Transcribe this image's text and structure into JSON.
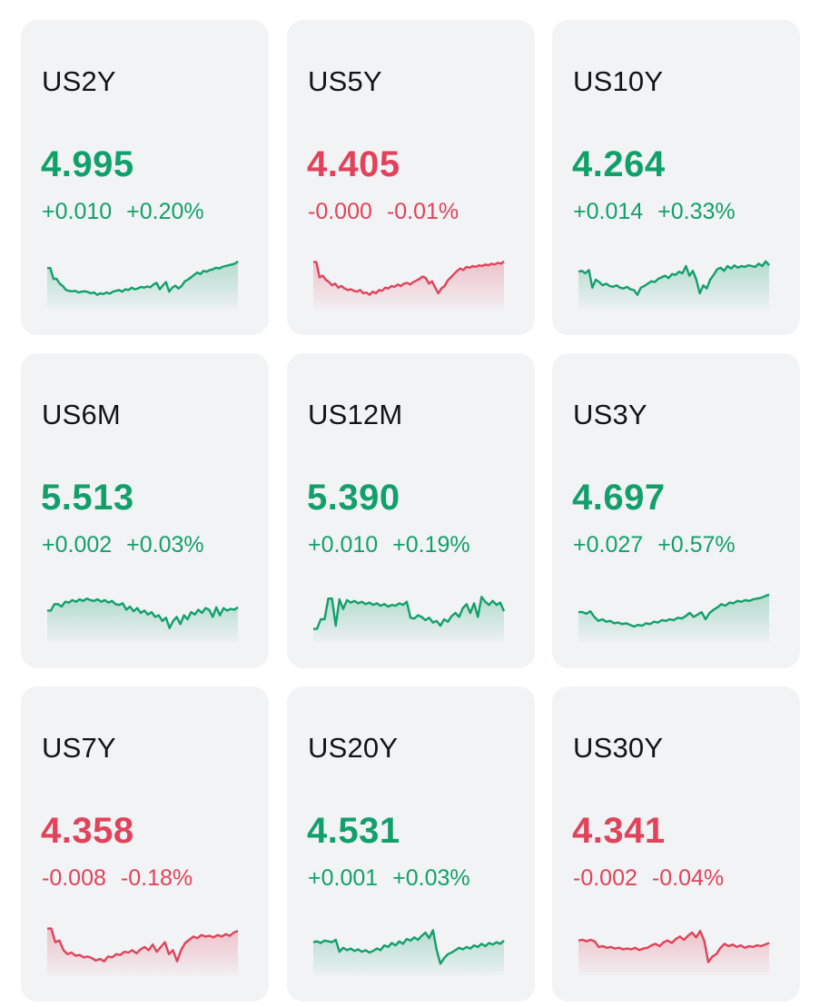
{
  "colors": {
    "up": "#12a06a",
    "down": "#e0435a",
    "card_bg": "#f2f3f5",
    "text": "#141414"
  },
  "cards": [
    {
      "symbol": "US2Y",
      "price": "4.995",
      "change": "+0.010",
      "change_pct": "+0.20%",
      "trend": "up",
      "spark": [
        0.79,
        0.79,
        0.52,
        0.52,
        0.4,
        0.34,
        0.24,
        0.22,
        0.21,
        0.22,
        0.18,
        0.2,
        0.21,
        0.19,
        0.16,
        0.18,
        0.12,
        0.16,
        0.14,
        0.18,
        0.15,
        0.2,
        0.22,
        0.24,
        0.2,
        0.26,
        0.24,
        0.3,
        0.26,
        0.28,
        0.32,
        0.3,
        0.33,
        0.31,
        0.38,
        0.42,
        0.26,
        0.36,
        0.44,
        0.2,
        0.3,
        0.35,
        0.28,
        0.34,
        0.46,
        0.5,
        0.56,
        0.62,
        0.68,
        0.64,
        0.72,
        0.7,
        0.74,
        0.76,
        0.8,
        0.78,
        0.82,
        0.84,
        0.86,
        0.88,
        0.9,
        0.96
      ]
    },
    {
      "symbol": "US5Y",
      "price": "4.405",
      "change": "-0.000",
      "change_pct": "-0.01%",
      "trend": "down",
      "spark": [
        0.94,
        0.94,
        0.56,
        0.6,
        0.5,
        0.44,
        0.36,
        0.4,
        0.3,
        0.34,
        0.28,
        0.24,
        0.26,
        0.22,
        0.2,
        0.24,
        0.16,
        0.18,
        0.12,
        0.2,
        0.16,
        0.24,
        0.22,
        0.3,
        0.28,
        0.34,
        0.32,
        0.38,
        0.34,
        0.4,
        0.42,
        0.38,
        0.44,
        0.48,
        0.52,
        0.58,
        0.54,
        0.4,
        0.46,
        0.3,
        0.16,
        0.28,
        0.34,
        0.48,
        0.56,
        0.64,
        0.72,
        0.78,
        0.74,
        0.82,
        0.8,
        0.84,
        0.82,
        0.86,
        0.84,
        0.88,
        0.86,
        0.9,
        0.88,
        0.92,
        0.9,
        0.96
      ]
    },
    {
      "symbol": "US10Y",
      "price": "4.264",
      "change": "+0.014",
      "change_pct": "+0.33%",
      "trend": "up",
      "spark": [
        0.7,
        0.72,
        0.66,
        0.74,
        0.3,
        0.5,
        0.44,
        0.36,
        0.4,
        0.34,
        0.32,
        0.36,
        0.3,
        0.28,
        0.32,
        0.26,
        0.24,
        0.12,
        0.3,
        0.34,
        0.4,
        0.46,
        0.44,
        0.52,
        0.56,
        0.6,
        0.54,
        0.64,
        0.62,
        0.7,
        0.66,
        0.84,
        0.6,
        0.72,
        0.5,
        0.16,
        0.36,
        0.28,
        0.5,
        0.62,
        0.76,
        0.8,
        0.72,
        0.84,
        0.78,
        0.86,
        0.8,
        0.84,
        0.82,
        0.86,
        0.84,
        0.82,
        0.9,
        0.84,
        0.96,
        0.86
      ]
    },
    {
      "symbol": "US6M",
      "price": "5.513",
      "change": "+0.002",
      "change_pct": "+0.03%",
      "trend": "up",
      "spark": [
        0.56,
        0.56,
        0.72,
        0.72,
        0.66,
        0.78,
        0.76,
        0.82,
        0.78,
        0.84,
        0.8,
        0.86,
        0.82,
        0.8,
        0.84,
        0.78,
        0.82,
        0.76,
        0.8,
        0.72,
        0.7,
        0.74,
        0.58,
        0.66,
        0.54,
        0.62,
        0.5,
        0.56,
        0.46,
        0.52,
        0.4,
        0.44,
        0.3,
        0.38,
        0.12,
        0.3,
        0.4,
        0.22,
        0.44,
        0.34,
        0.52,
        0.46,
        0.58,
        0.5,
        0.62,
        0.58,
        0.4,
        0.64,
        0.44,
        0.62,
        0.56,
        0.6,
        0.58,
        0.64
      ]
    },
    {
      "symbol": "US12M",
      "price": "5.390",
      "change": "+0.010",
      "change_pct": "+0.19%",
      "trend": "up",
      "spark": [
        0.1,
        0.1,
        0.34,
        0.34,
        0.86,
        0.86,
        0.18,
        0.84,
        0.6,
        0.82,
        0.76,
        0.8,
        0.74,
        0.78,
        0.72,
        0.76,
        0.7,
        0.74,
        0.68,
        0.72,
        0.66,
        0.7,
        0.68,
        0.74,
        0.7,
        0.78,
        0.38,
        0.36,
        0.44,
        0.4,
        0.32,
        0.38,
        0.26,
        0.3,
        0.18,
        0.34,
        0.28,
        0.42,
        0.5,
        0.4,
        0.62,
        0.72,
        0.5,
        0.74,
        0.4,
        0.9,
        0.78,
        0.7,
        0.8,
        0.7,
        0.76,
        0.54
      ]
    },
    {
      "symbol": "US3Y",
      "price": "4.697",
      "change": "+0.027",
      "change_pct": "+0.57%",
      "trend": "up",
      "spark": [
        0.52,
        0.52,
        0.48,
        0.54,
        0.4,
        0.3,
        0.34,
        0.28,
        0.3,
        0.24,
        0.26,
        0.22,
        0.24,
        0.2,
        0.16,
        0.2,
        0.18,
        0.24,
        0.22,
        0.28,
        0.26,
        0.32,
        0.3,
        0.34,
        0.32,
        0.38,
        0.36,
        0.42,
        0.5,
        0.4,
        0.46,
        0.52,
        0.34,
        0.5,
        0.58,
        0.64,
        0.72,
        0.68,
        0.76,
        0.74,
        0.8,
        0.78,
        0.82,
        0.8,
        0.84,
        0.86,
        0.88,
        0.92,
        0.96
      ]
    },
    {
      "symbol": "US7Y",
      "price": "4.358",
      "change": "-0.008",
      "change_pct": "-0.18%",
      "trend": "down",
      "spark": [
        0.94,
        0.94,
        0.6,
        0.64,
        0.4,
        0.3,
        0.34,
        0.26,
        0.28,
        0.22,
        0.24,
        0.2,
        0.14,
        0.18,
        0.12,
        0.24,
        0.22,
        0.3,
        0.28,
        0.36,
        0.34,
        0.4,
        0.32,
        0.42,
        0.48,
        0.4,
        0.54,
        0.36,
        0.48,
        0.6,
        0.3,
        0.4,
        0.12,
        0.4,
        0.58,
        0.66,
        0.74,
        0.7,
        0.78,
        0.74,
        0.76,
        0.72,
        0.78,
        0.74,
        0.8,
        0.76,
        0.84,
        0.88
      ]
    },
    {
      "symbol": "US20Y",
      "price": "4.531",
      "change": "+0.001",
      "change_pct": "+0.03%",
      "trend": "up",
      "spark": [
        0.6,
        0.62,
        0.58,
        0.64,
        0.62,
        0.6,
        0.66,
        0.36,
        0.46,
        0.4,
        0.44,
        0.38,
        0.42,
        0.36,
        0.4,
        0.34,
        0.38,
        0.44,
        0.4,
        0.52,
        0.48,
        0.58,
        0.52,
        0.62,
        0.56,
        0.68,
        0.64,
        0.72,
        0.66,
        0.76,
        0.84,
        0.7,
        0.9,
        0.4,
        0.06,
        0.2,
        0.3,
        0.34,
        0.4,
        0.46,
        0.42,
        0.48,
        0.44,
        0.52,
        0.48,
        0.56,
        0.5,
        0.58,
        0.54,
        0.6,
        0.56,
        0.64
      ]
    },
    {
      "symbol": "US30Y",
      "price": "4.341",
      "change": "-0.002",
      "change_pct": "-0.04%",
      "trend": "down",
      "spark": [
        0.64,
        0.66,
        0.62,
        0.66,
        0.62,
        0.48,
        0.5,
        0.46,
        0.48,
        0.44,
        0.46,
        0.42,
        0.44,
        0.42,
        0.46,
        0.4,
        0.44,
        0.46,
        0.52,
        0.56,
        0.5,
        0.6,
        0.64,
        0.58,
        0.68,
        0.74,
        0.66,
        0.76,
        0.84,
        0.72,
        0.88,
        0.64,
        0.1,
        0.24,
        0.3,
        0.46,
        0.56,
        0.5,
        0.54,
        0.48,
        0.52,
        0.46,
        0.5,
        0.48,
        0.52,
        0.5,
        0.54,
        0.58
      ]
    }
  ]
}
